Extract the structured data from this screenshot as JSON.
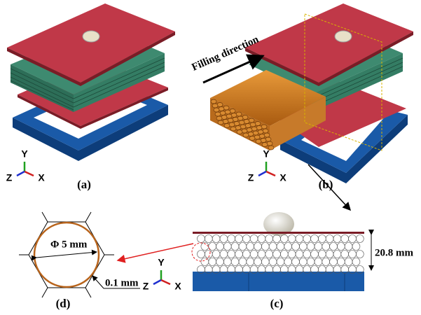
{
  "panels": [
    {
      "label": "(a)",
      "axes": {
        "y": "Y",
        "z": "Z",
        "x": "X"
      }
    },
    {
      "label": "(b)",
      "axes": {
        "y": "Y",
        "z": "Z",
        "x": "X"
      },
      "annotation": "Filling direction"
    },
    {
      "label": "(c)",
      "axes": {
        "y": "Y",
        "z": "Z",
        "x": "X"
      },
      "dimension": "20.8 mm"
    },
    {
      "label": "(d)",
      "diameter": "Φ 5 mm",
      "thickness": "0.1 mm"
    }
  ]
}
